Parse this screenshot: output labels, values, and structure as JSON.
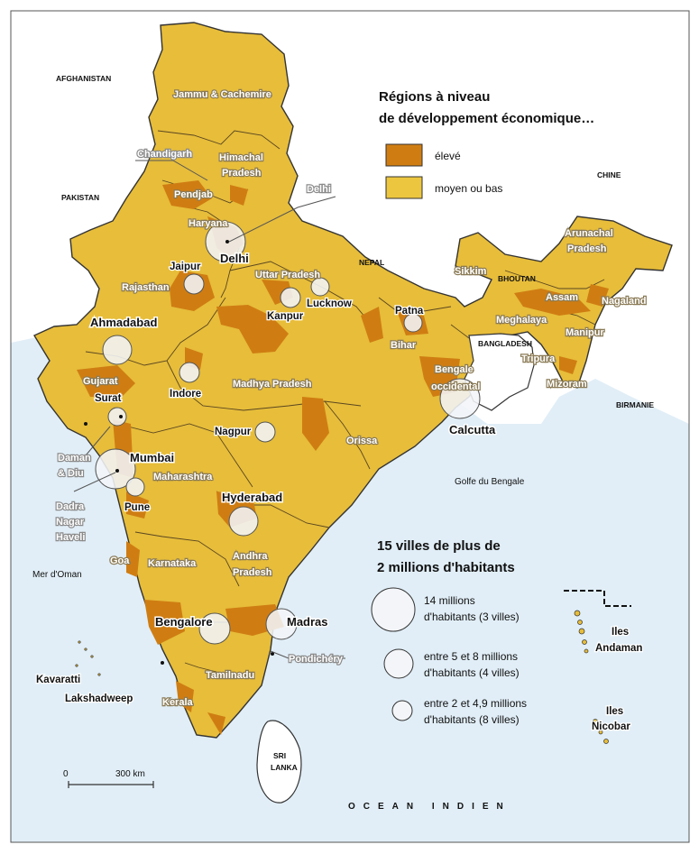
{
  "colors": {
    "sea": "#e1eef7",
    "land_india": "#e7bd3a",
    "high_dev": "#cf7d12",
    "medium_low": "#ecc63f",
    "neighbors": "#ffffff",
    "border": "#333333"
  },
  "legend_regions": {
    "title_line1": "Régions à niveau",
    "title_line2": "de développement économique…",
    "high_label": "élevé",
    "medium_label": "moyen ou bas"
  },
  "legend_cities": {
    "title_line1": "15 villes de plus de",
    "title_line2": "2 millions d'habitants",
    "large_line1": "14 millions",
    "large_line2": "d'habitants (3 villes)",
    "medium_line1": "entre 5 et 8 millions",
    "medium_line2": "d'habitants (4 villes)",
    "small_line1": "entre 2 et 4,9 millions",
    "small_line2": "d'habitants (8 villes)"
  },
  "countries": {
    "afghanistan": "AFGHANISTAN",
    "pakistan": "PAKISTAN",
    "nepal": "NEPAL",
    "chine": "CHINE",
    "bhoutan": "BHOUTAN",
    "bangladesh": "BANGLADESH",
    "birmanie": "BIRMANIE",
    "sri_lanka_1": "SRI",
    "sri_lanka_2": "LANKA"
  },
  "seas": {
    "mer_oman": "Mer d'Oman",
    "golfe_bengale": "Golfe du Bengale",
    "ocean_indien": "OCEAN INDIEN"
  },
  "states": {
    "jammu": "Jammu & Cachemire",
    "himachal_1": "Himachal",
    "himachal_2": "Pradesh",
    "pendjab": "Pendjab",
    "haryana": "Haryana",
    "rajasthan": "Rajasthan",
    "uttar": "Uttar Pradesh",
    "bihar": "Bihar",
    "gujarat": "Gujarat",
    "madhya": "Madhya Pradesh",
    "bengale_1": "Bengale",
    "bengale_2": "occidental",
    "maharashtra": "Maharashtra",
    "orissa": "Orissa",
    "andhra_1": "Andhra",
    "andhra_2": "Pradesh",
    "karnataka": "Karnataka",
    "goa": "Goa",
    "tamilnadu": "Tamilnadu",
    "kerala": "Kerala",
    "sikkim": "Sikkim",
    "arunachal_1": "Arunachal",
    "arunachal_2": "Pradesh",
    "assam": "Assam",
    "nagaland": "Nagaland",
    "meghalaya": "Meghalaya",
    "manipur": "Manipur",
    "tripura": "Tripura",
    "mizoram": "Mizoram"
  },
  "union_territories": {
    "chandigarh": "Chandigarh",
    "delhi": "Delhi",
    "daman_1": "Daman",
    "daman_2": "& Diu",
    "dadra_1": "Dadra",
    "dadra_2": "Nagar",
    "dadra_3": "Haveli",
    "pondichery": "Pondichéry"
  },
  "cities": {
    "delhi": "Delhi",
    "jaipur": "Jaipur",
    "lucknow": "Lucknow",
    "kanpur": "Kanpur",
    "patna": "Patna",
    "ahmadabad": "Ahmadabad",
    "surat": "Surat",
    "indore": "Indore",
    "nagpur": "Nagpur",
    "mumbai": "Mumbai",
    "pune": "Pune",
    "hyderabad": "Hyderabad",
    "bengalore": "Bengalore",
    "madras": "Madras",
    "calcutta": "Calcutta"
  },
  "islands": {
    "kavaratti": "Kavaratti",
    "lakshadweep": "Lakshadweep",
    "andaman_1": "Iles",
    "andaman_2": "Andaman",
    "nicobar_1": "Iles",
    "nicobar_2": "Nicobar"
  },
  "scale": {
    "zero": "0",
    "distance": "300 km"
  }
}
